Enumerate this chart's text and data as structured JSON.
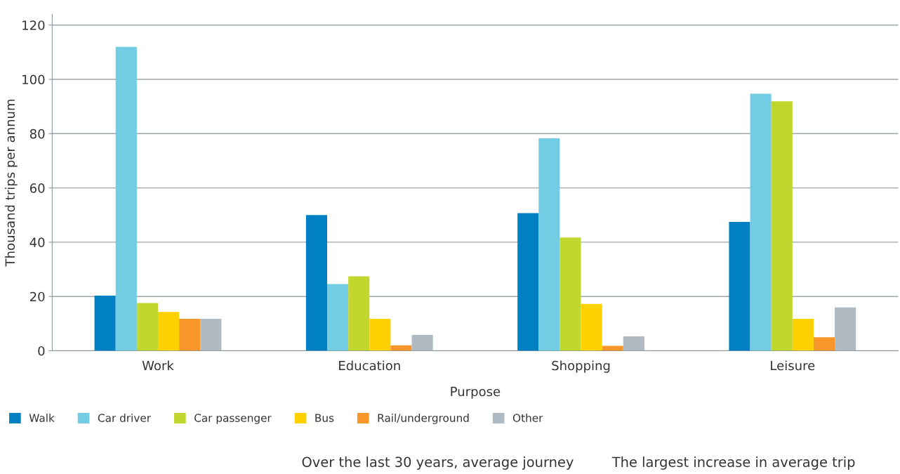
{
  "chart_data": {
    "type": "bar",
    "xlabel": "Purpose",
    "ylabel": "Thousand trips per annum",
    "categories": [
      "Work",
      "Education",
      "Shopping",
      "Leisure"
    ],
    "series": [
      {
        "name": "Walk",
        "color": "#0080c4",
        "values": [
          20.3,
          50,
          50.7,
          47.5
        ]
      },
      {
        "name": "Car driver",
        "color": "#72cce4",
        "values": [
          112,
          24.6,
          78.3,
          94.7
        ]
      },
      {
        "name": "Car passenger",
        "color": "#c1d72e",
        "values": [
          17.6,
          27.4,
          41.7,
          91.9
        ]
      },
      {
        "name": "Bus",
        "color": "#ffd100",
        "values": [
          14.3,
          11.8,
          17.3,
          11.8
        ]
      },
      {
        "name": "Rail/underground",
        "color": "#f7972b",
        "values": [
          11.8,
          2,
          1.8,
          5
        ]
      },
      {
        "name": "Other",
        "color": "#afbac2",
        "values": [
          11.8,
          5.8,
          5.3,
          16
        ]
      }
    ],
    "ylim": [
      0,
      124
    ],
    "yticks": [
      0,
      20,
      40,
      60,
      80,
      100,
      120
    ],
    "grid": "y",
    "legend": "bottom left",
    "annotations": [
      "Over the last 30 years, average journey",
      "The largest increase in average trip"
    ]
  }
}
